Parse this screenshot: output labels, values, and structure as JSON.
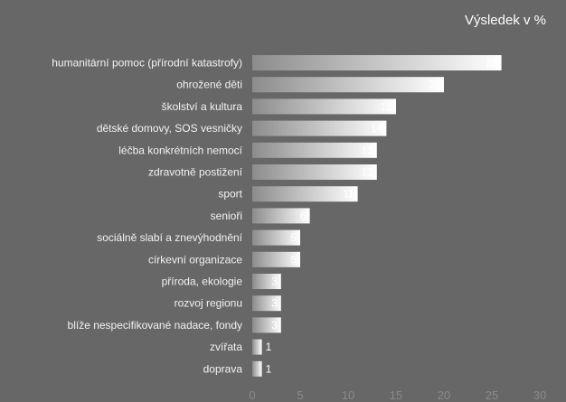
{
  "chart_data": {
    "type": "bar",
    "orientation": "horizontal",
    "title": "Výsledek v %",
    "categories": [
      "humanitární pomoc (přírodní katastrofy)",
      "ohrožené děti",
      "školství a kultura",
      "dětské domovy, SOS vesničky",
      "léčba konkrétních nemocí",
      "zdravotně postižení",
      "sport",
      "senioři",
      "sociálně slabí a znevýhodnění",
      "církevní organizace",
      "příroda, ekologie",
      "rozvoj regionu",
      "blíže nespecifikované nadace, fondy",
      "zvířata",
      "doprava"
    ],
    "values": [
      26,
      20,
      15,
      14,
      13,
      13,
      11,
      6,
      5,
      5,
      3,
      3,
      3,
      1,
      1
    ],
    "xlim": [
      0,
      30
    ],
    "xticks": [
      0,
      5,
      10,
      15,
      20,
      25,
      30
    ],
    "grid": false,
    "colors": {
      "background": "#676767",
      "bar_light": "#ffffff",
      "bar_dark": "#8c8c8c",
      "axis_text": "#8a8a8a",
      "label_text": "#f2f2f2"
    }
  }
}
